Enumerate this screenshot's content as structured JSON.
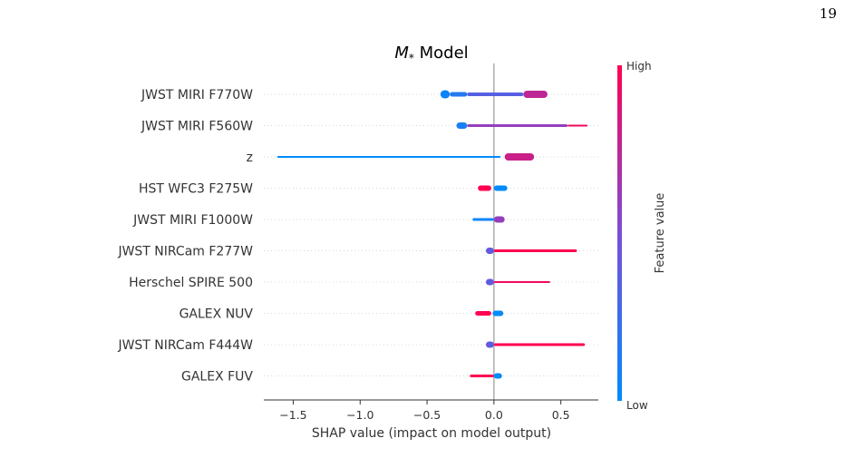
{
  "page_number": "19",
  "chart_data": {
    "type": "beeswarm",
    "title_symbol": "M",
    "title_subscript": "*",
    "title_rest": " Model",
    "xlabel": "SHAP value (impact on model output)",
    "xlim": [
      -1.72,
      0.78
    ],
    "xticks": [
      {
        "value": -1.5,
        "label": "−1.5"
      },
      {
        "value": -1.0,
        "label": "−1.0"
      },
      {
        "value": -0.5,
        "label": "−0.5"
      },
      {
        "value": 0.0,
        "label": "0.0"
      },
      {
        "value": 0.5,
        "label": "0.5"
      }
    ],
    "colorbar": {
      "high_label": "High",
      "low_label": "Low",
      "title": "Feature value",
      "low_color": "#008bfb",
      "high_color": "#ff0052"
    },
    "features": [
      {
        "name": "JWST MIRI F770W",
        "segments": [
          {
            "from": -0.4,
            "to": -0.33,
            "color": 0.05,
            "w": 9
          },
          {
            "from": -0.33,
            "to": -0.2,
            "color": 0.15,
            "w": 5
          },
          {
            "from": -0.2,
            "to": 0.22,
            "color": 0.35,
            "w": 4
          },
          {
            "from": 0.22,
            "to": 0.4,
            "color": 0.75,
            "w": 8
          }
        ]
      },
      {
        "name": "JWST MIRI F560W",
        "segments": [
          {
            "from": -0.28,
            "to": -0.2,
            "color": 0.1,
            "w": 7
          },
          {
            "from": -0.2,
            "to": 0.55,
            "color": 0.6,
            "w": 3
          },
          {
            "from": 0.55,
            "to": 0.7,
            "color": 0.95,
            "w": 2
          }
        ]
      },
      {
        "name": "z",
        "segments": [
          {
            "from": -1.62,
            "to": 0.05,
            "color": 0.0,
            "w": 2
          },
          {
            "from": 0.08,
            "to": 0.3,
            "color": 0.8,
            "w": 8
          }
        ]
      },
      {
        "name": "HST WFC3 F275W",
        "segments": [
          {
            "from": -0.12,
            "to": -0.02,
            "color": 1.0,
            "w": 6
          },
          {
            "from": 0.0,
            "to": 0.1,
            "color": 0.0,
            "w": 6
          }
        ]
      },
      {
        "name": "JWST MIRI F1000W",
        "segments": [
          {
            "from": -0.16,
            "to": 0.0,
            "color": 0.05,
            "w": 3
          },
          {
            "from": 0.0,
            "to": 0.08,
            "color": 0.6,
            "w": 7
          }
        ]
      },
      {
        "name": "JWST NIRCam F277W",
        "segments": [
          {
            "from": -0.06,
            "to": 0.0,
            "color": 0.4,
            "w": 7
          },
          {
            "from": 0.0,
            "to": 0.62,
            "color": 1.0,
            "w": 3
          }
        ]
      },
      {
        "name": "Herschel SPIRE 500",
        "segments": [
          {
            "from": -0.06,
            "to": 0.0,
            "color": 0.4,
            "w": 7
          },
          {
            "from": 0.0,
            "to": 0.42,
            "color": 0.95,
            "w": 2
          }
        ]
      },
      {
        "name": "GALEX NUV",
        "segments": [
          {
            "from": -0.14,
            "to": -0.02,
            "color": 1.0,
            "w": 5
          },
          {
            "from": -0.01,
            "to": 0.07,
            "color": 0.0,
            "w": 6
          }
        ]
      },
      {
        "name": "JWST NIRCam F444W",
        "segments": [
          {
            "from": -0.06,
            "to": 0.0,
            "color": 0.4,
            "w": 7
          },
          {
            "from": 0.0,
            "to": 0.68,
            "color": 1.0,
            "w": 3
          }
        ]
      },
      {
        "name": "GALEX FUV",
        "segments": [
          {
            "from": -0.18,
            "to": 0.0,
            "color": 1.0,
            "w": 3
          },
          {
            "from": 0.0,
            "to": 0.06,
            "color": 0.0,
            "w": 6
          }
        ]
      }
    ]
  }
}
